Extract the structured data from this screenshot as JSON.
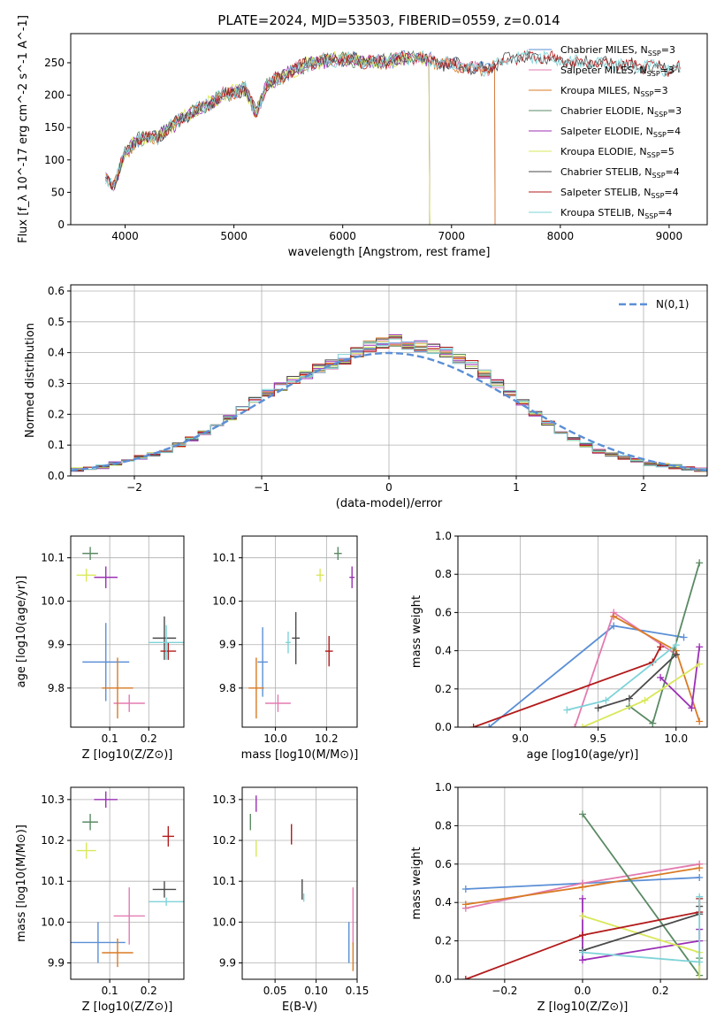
{
  "figure_title": "PLATE=2024, MJD=53503, FIBERID=0559, z=0.014",
  "colors": {
    "chabrier_miles": "#5b8fd6",
    "salpeter_miles": "#e37bb0",
    "kroupa_miles": "#d97a24",
    "chabrier_elodie": "#5a8a64",
    "salpeter_elodie": "#9b2fb5",
    "kroupa_elodie": "#d9e85a",
    "chabrier_stelib": "#4a4a4a",
    "salpeter_stelib": "#b31b1b",
    "kroupa_stelib": "#7ed3d8"
  },
  "chart_data": [
    {
      "id": "spectrum",
      "type": "line",
      "xlabel": "wavelength [Angstrom, rest frame]",
      "ylabel": "Flux [f_λ 10^-17 erg cm^-2 s^-1 A^-1]",
      "xlim": [
        3500,
        9350
      ],
      "ylim": [
        0,
        295
      ],
      "xticks": [
        4000,
        5000,
        6000,
        7000,
        8000,
        9000
      ],
      "yticks": [
        0,
        50,
        100,
        150,
        200,
        250
      ],
      "legend_position": "upper-right",
      "legend": [
        "Chabrier MILES, N_SSP=3",
        "Salpeter MILES, N_SSP=3",
        "Kroupa MILES, N_SSP=3",
        "Chabrier ELODIE, N_SSP=3",
        "Salpeter ELODIE, N_SSP=4",
        "Kroupa ELODIE, N_SSP=5",
        "Chabrier STELIB, N_SSP=4",
        "Salpeter STELIB, N_SSP=4",
        "Kroupa STELIB, N_SSP=4"
      ],
      "continuum": {
        "x": [
          3820,
          3900,
          4000,
          4100,
          4200,
          4300,
          4500,
          4700,
          4900,
          5100,
          5200,
          5300,
          5500,
          5700,
          5900,
          6100,
          6300,
          6500,
          6700,
          6900,
          7100,
          7300,
          7500,
          7700,
          7900,
          8100,
          8300,
          8500,
          8700,
          8900,
          9100
        ],
        "y": [
          75,
          62,
          110,
          130,
          135,
          135,
          162,
          180,
          200,
          210,
          172,
          215,
          235,
          250,
          255,
          255,
          250,
          255,
          258,
          250,
          245,
          240,
          255,
          260,
          258,
          250,
          250,
          248,
          245,
          242,
          240
        ]
      },
      "series_ranges": [
        {
          "name": "Chabrier MILES",
          "x": [
            3820,
            7400
          ]
        },
        {
          "name": "Salpeter MILES",
          "x": [
            3820,
            7400
          ]
        },
        {
          "name": "Kroupa MILES",
          "x": [
            3820,
            7400
          ]
        },
        {
          "name": "Chabrier ELODIE",
          "x": [
            3900,
            6800
          ]
        },
        {
          "name": "Salpeter ELODIE",
          "x": [
            3900,
            6800
          ]
        },
        {
          "name": "Kroupa ELODIE",
          "x": [
            3900,
            6800
          ]
        },
        {
          "name": "Chabrier STELIB",
          "x": [
            3820,
            9100
          ]
        },
        {
          "name": "Salpeter STELIB",
          "x": [
            3820,
            9100
          ]
        },
        {
          "name": "Kroupa STELIB",
          "x": [
            3820,
            9100
          ]
        }
      ]
    },
    {
      "id": "residuals",
      "type": "histogram",
      "xlabel": "(data-model)/error",
      "ylabel": "Normed distribution",
      "xlim": [
        -2.5,
        2.5
      ],
      "ylim": [
        0,
        0.62
      ],
      "xticks": [
        -2,
        -1,
        0,
        1,
        2
      ],
      "yticks": [
        0.0,
        0.1,
        0.2,
        0.3,
        0.4,
        0.5,
        0.6
      ],
      "grid": true,
      "legend_position": "upper-right",
      "reference_legend": "N(0,1)",
      "bin_edges_start": -2.5,
      "bin_width": 0.1,
      "base_heights": [
        0.02,
        0.025,
        0.03,
        0.04,
        0.05,
        0.06,
        0.07,
        0.08,
        0.1,
        0.12,
        0.14,
        0.16,
        0.19,
        0.22,
        0.25,
        0.27,
        0.29,
        0.31,
        0.33,
        0.35,
        0.36,
        0.38,
        0.4,
        0.42,
        0.43,
        0.44,
        0.43,
        0.42,
        0.41,
        0.4,
        0.38,
        0.36,
        0.33,
        0.3,
        0.27,
        0.24,
        0.2,
        0.17,
        0.14,
        0.12,
        0.1,
        0.08,
        0.07,
        0.06,
        0.05,
        0.04,
        0.035,
        0.03,
        0.025,
        0.02
      ]
    },
    {
      "id": "age-vs-z",
      "type": "errorbar",
      "xlabel": "Z [log10(Z/Z⊙)]",
      "ylabel": "age [log10(age/yr)]",
      "xlim": [
        0.0,
        0.29
      ],
      "ylim": [
        9.71,
        10.15
      ],
      "xticks": [
        0.1,
        0.2
      ],
      "yticks": [
        9.8,
        9.9,
        10.0,
        10.1
      ],
      "grid": true,
      "points": [
        {
          "name": "Chabrier MILES",
          "x": 0.09,
          "y": 9.86,
          "xerr": 0.06,
          "yerr": 0.09
        },
        {
          "name": "Salpeter MILES",
          "x": 0.15,
          "y": 9.765,
          "xerr": 0.04,
          "yerr": 0.02
        },
        {
          "name": "Kroupa MILES",
          "x": 0.12,
          "y": 9.8,
          "xerr": 0.04,
          "yerr": 0.07
        },
        {
          "name": "Chabrier ELODIE",
          "x": 0.05,
          "y": 10.11,
          "xerr": 0.02,
          "yerr": 0.015
        },
        {
          "name": "Salpeter ELODIE",
          "x": 0.09,
          "y": 10.055,
          "xerr": 0.03,
          "yerr": 0.025
        },
        {
          "name": "Kroupa ELODIE",
          "x": 0.04,
          "y": 10.06,
          "xerr": 0.025,
          "yerr": 0.015
        },
        {
          "name": "Chabrier STELIB",
          "x": 0.24,
          "y": 9.915,
          "xerr": 0.03,
          "yerr": 0.05
        },
        {
          "name": "Salpeter STELIB",
          "x": 0.25,
          "y": 9.885,
          "xerr": 0.02,
          "yerr": 0.02
        },
        {
          "name": "Kroupa STELIB",
          "x": 0.245,
          "y": 9.905,
          "xerr": 0.045,
          "yerr": 0.04
        }
      ]
    },
    {
      "id": "age-vs-mass",
      "type": "errorbar",
      "xlabel": "mass [log10(M/M⊙)]",
      "ylabel": "",
      "xlim": [
        9.87,
        10.32
      ],
      "ylim": [
        9.71,
        10.15
      ],
      "xticks": [
        10.0,
        10.2
      ],
      "yticks": [
        9.8,
        9.9,
        10.0,
        10.1
      ],
      "grid": true,
      "points": [
        {
          "name": "Chabrier MILES",
          "x": 9.95,
          "y": 9.86,
          "xerr": 0.02,
          "yerr": 0.08
        },
        {
          "name": "Salpeter MILES",
          "x": 10.01,
          "y": 9.765,
          "xerr": 0.05,
          "yerr": 0.02
        },
        {
          "name": "Kroupa MILES",
          "x": 9.925,
          "y": 9.8,
          "xerr": 0.03,
          "yerr": 0.07
        },
        {
          "name": "Chabrier ELODIE",
          "x": 10.245,
          "y": 10.11,
          "xerr": 0.015,
          "yerr": 0.015
        },
        {
          "name": "Salpeter ELODIE",
          "x": 10.3,
          "y": 10.055,
          "xerr": 0.01,
          "yerr": 0.025
        },
        {
          "name": "Kroupa ELODIE",
          "x": 10.175,
          "y": 10.06,
          "xerr": 0.015,
          "yerr": 0.015
        },
        {
          "name": "Chabrier STELIB",
          "x": 10.08,
          "y": 9.915,
          "xerr": 0.015,
          "yerr": 0.06
        },
        {
          "name": "Salpeter STELIB",
          "x": 10.21,
          "y": 9.885,
          "xerr": 0.015,
          "yerr": 0.035
        },
        {
          "name": "Kroupa STELIB",
          "x": 10.05,
          "y": 9.905,
          "xerr": 0.01,
          "yerr": 0.025
        }
      ]
    },
    {
      "id": "weight-vs-age",
      "type": "line",
      "xlabel": "age [log10(age/yr)]",
      "ylabel": "mass weight",
      "xlim": [
        8.6,
        10.2
      ],
      "ylim": [
        0.0,
        1.0
      ],
      "xticks": [
        9.0,
        9.5,
        10.0
      ],
      "yticks": [
        0.0,
        0.2,
        0.4,
        0.6,
        0.8,
        1.0
      ],
      "grid": true,
      "series": [
        {
          "name": "Chabrier MILES",
          "x": [
            8.8,
            9.6,
            10.05
          ],
          "y": [
            0.0,
            0.53,
            0.47
          ]
        },
        {
          "name": "Salpeter MILES",
          "x": [
            9.35,
            9.6,
            10.0
          ],
          "y": [
            0.0,
            0.6,
            0.38
          ]
        },
        {
          "name": "Kroupa MILES",
          "x": [
            9.6,
            10.0,
            10.15
          ],
          "y": [
            0.58,
            0.4,
            0.03
          ]
        },
        {
          "name": "Chabrier ELODIE",
          "x": [
            9.7,
            9.85,
            10.15
          ],
          "y": [
            0.11,
            0.02,
            0.86
          ]
        },
        {
          "name": "Salpeter ELODIE",
          "x": [
            9.9,
            10.1,
            10.15
          ],
          "y": [
            0.26,
            0.1,
            0.42
          ]
        },
        {
          "name": "Kroupa ELODIE",
          "x": [
            9.4,
            9.8,
            10.15
          ],
          "y": [
            0.0,
            0.14,
            0.33
          ]
        },
        {
          "name": "Chabrier STELIB",
          "x": [
            9.5,
            9.7,
            10.0
          ],
          "y": [
            0.1,
            0.15,
            0.38
          ]
        },
        {
          "name": "Salpeter STELIB",
          "x": [
            8.7,
            9.85,
            9.9
          ],
          "y": [
            0.0,
            0.34,
            0.42
          ]
        },
        {
          "name": "Kroupa STELIB",
          "x": [
            9.3,
            9.55,
            10.0
          ],
          "y": [
            0.09,
            0.14,
            0.43
          ]
        }
      ]
    },
    {
      "id": "mass-vs-z",
      "type": "errorbar",
      "xlabel": "Z [log10(Z/Z⊙)]",
      "ylabel": "mass [log10(M/M⊙)]",
      "xlim": [
        0.0,
        0.29
      ],
      "ylim": [
        9.86,
        10.33
      ],
      "xticks": [
        0.1,
        0.2
      ],
      "yticks": [
        9.9,
        10.0,
        10.1,
        10.2,
        10.3
      ],
      "grid": true,
      "points": [
        {
          "name": "Chabrier MILES",
          "x": 0.07,
          "y": 9.95,
          "xerr": 0.07,
          "yerr": 0.05
        },
        {
          "name": "Salpeter MILES",
          "x": 0.15,
          "y": 10.015,
          "xerr": 0.04,
          "yerr": 0.07
        },
        {
          "name": "Kroupa MILES",
          "x": 0.12,
          "y": 9.925,
          "xerr": 0.04,
          "yerr": 0.035
        },
        {
          "name": "Chabrier ELODIE",
          "x": 0.05,
          "y": 10.245,
          "xerr": 0.02,
          "yerr": 0.02
        },
        {
          "name": "Salpeter ELODIE",
          "x": 0.09,
          "y": 10.3,
          "xerr": 0.03,
          "yerr": 0.02
        },
        {
          "name": "Kroupa ELODIE",
          "x": 0.04,
          "y": 10.175,
          "xerr": 0.025,
          "yerr": 0.02
        },
        {
          "name": "Chabrier STELIB",
          "x": 0.24,
          "y": 10.08,
          "xerr": 0.03,
          "yerr": 0.02
        },
        {
          "name": "Salpeter STELIB",
          "x": 0.25,
          "y": 10.21,
          "xerr": 0.015,
          "yerr": 0.025
        },
        {
          "name": "Kroupa STELIB",
          "x": 0.245,
          "y": 10.05,
          "xerr": 0.045,
          "yerr": 0.01
        }
      ]
    },
    {
      "id": "mass-vs-ebv",
      "type": "errorbar",
      "xlabel": "E(B-V)",
      "ylabel": "",
      "xlim": [
        0.01,
        0.15
      ],
      "ylim": [
        9.86,
        10.33
      ],
      "xticks": [
        0.05,
        0.1,
        0.15
      ],
      "yticks": [
        9.9,
        10.0,
        10.1,
        10.2,
        10.3
      ],
      "grid": true,
      "points": [
        {
          "name": "Chabrier MILES",
          "x": 0.14,
          "y": 9.95,
          "xerr": 0.0,
          "yerr": 0.05
        },
        {
          "name": "Salpeter MILES",
          "x": 0.145,
          "y": 10.015,
          "xerr": 0.0,
          "yerr": 0.07
        },
        {
          "name": "Kroupa MILES",
          "x": 0.145,
          "y": 9.915,
          "xerr": 0.0,
          "yerr": 0.035
        },
        {
          "name": "Chabrier ELODIE",
          "x": 0.02,
          "y": 10.245,
          "xerr": 0.0,
          "yerr": 0.02
        },
        {
          "name": "Salpeter ELODIE",
          "x": 0.027,
          "y": 10.29,
          "xerr": 0.0,
          "yerr": 0.02
        },
        {
          "name": "Kroupa ELODIE",
          "x": 0.027,
          "y": 10.18,
          "xerr": 0.0,
          "yerr": 0.02
        },
        {
          "name": "Chabrier STELIB",
          "x": 0.083,
          "y": 10.08,
          "xerr": 0.0,
          "yerr": 0.025
        },
        {
          "name": "Salpeter STELIB",
          "x": 0.07,
          "y": 10.215,
          "xerr": 0.0,
          "yerr": 0.025
        },
        {
          "name": "Kroupa STELIB",
          "x": 0.085,
          "y": 10.06,
          "xerr": 0.0,
          "yerr": 0.01
        }
      ]
    },
    {
      "id": "weight-vs-z",
      "type": "line",
      "xlabel": "Z [log10(Z/Z⊙)]",
      "ylabel": "mass weight",
      "xlim": [
        -0.32,
        0.32
      ],
      "ylim": [
        0.0,
        1.0
      ],
      "xticks": [
        -0.2,
        0.0,
        0.2
      ],
      "yticks": [
        0.0,
        0.2,
        0.4,
        0.6,
        0.8,
        1.0
      ],
      "grid": true,
      "series": [
        {
          "name": "Chabrier MILES",
          "x": [
            -0.3,
            0.0,
            0.3
          ],
          "y": [
            0.47,
            0.5,
            0.53
          ]
        },
        {
          "name": "Salpeter MILES",
          "x": [
            -0.3,
            0.0,
            0.3
          ],
          "y": [
            0.37,
            0.5,
            0.6
          ]
        },
        {
          "name": "Kroupa MILES",
          "x": [
            -0.3,
            0.0,
            0.3
          ],
          "y": [
            0.39,
            0.48,
            0.58
          ]
        },
        {
          "name": "Chabrier ELODIE",
          "x": [
            0.0,
            0.3,
            0.3
          ],
          "y": [
            0.86,
            0.02,
            0.11
          ]
        },
        {
          "name": "Salpeter ELODIE",
          "x": [
            0.0,
            0.0,
            0.3,
            0.3
          ],
          "y": [
            0.42,
            0.1,
            0.2,
            0.26
          ]
        },
        {
          "name": "Kroupa ELODIE",
          "x": [
            0.0,
            0.3,
            0.3
          ],
          "y": [
            0.33,
            0.14,
            0.0
          ]
        },
        {
          "name": "Chabrier STELIB",
          "x": [
            0.0,
            0.3,
            0.3
          ],
          "y": [
            0.15,
            0.34,
            0.38
          ]
        },
        {
          "name": "Salpeter STELIB",
          "x": [
            -0.3,
            0.0,
            0.3,
            0.3
          ],
          "y": [
            0.0,
            0.23,
            0.35,
            0.42
          ]
        },
        {
          "name": "Kroupa STELIB",
          "x": [
            0.0,
            0.3,
            0.3
          ],
          "y": [
            0.14,
            0.09,
            0.43
          ]
        }
      ]
    }
  ]
}
